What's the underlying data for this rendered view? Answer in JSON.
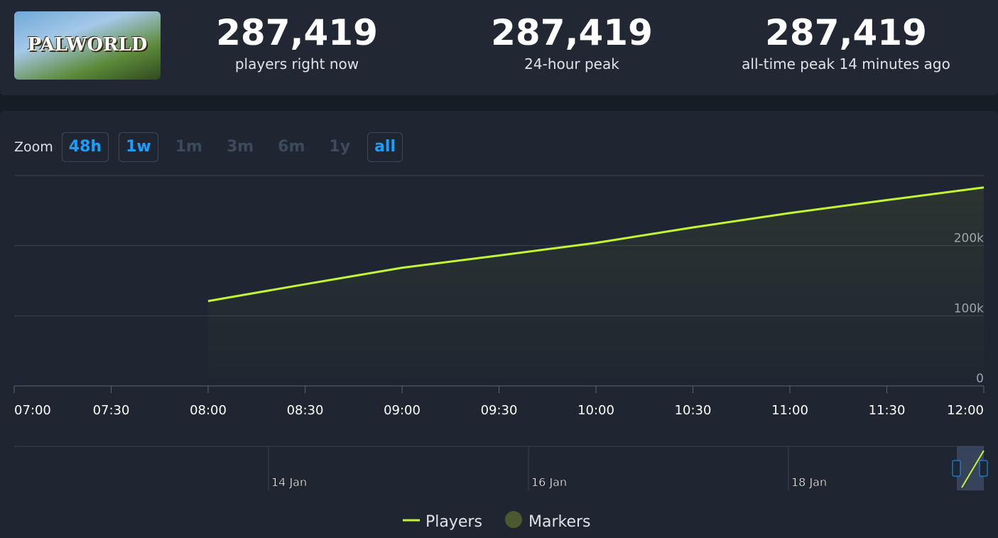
{
  "game": {
    "logo_text": "PALWORLD"
  },
  "stats": [
    {
      "value": "287,419",
      "label": "players right now"
    },
    {
      "value": "287,419",
      "label": "24-hour peak"
    },
    {
      "value": "287,419",
      "label": "all-time peak 14 minutes ago"
    }
  ],
  "zoom": {
    "label": "Zoom",
    "options": [
      {
        "label": "48h",
        "active": true
      },
      {
        "label": "1w",
        "active": true
      },
      {
        "label": "1m",
        "active": false
      },
      {
        "label": "3m",
        "active": false
      },
      {
        "label": "6m",
        "active": false
      },
      {
        "label": "1y",
        "active": false
      },
      {
        "label": "all",
        "active": true
      }
    ]
  },
  "chart_data": {
    "type": "line",
    "categories": [
      "07:00",
      "07:30",
      "08:00",
      "08:30",
      "09:00",
      "09:30",
      "10:00",
      "10:30",
      "11:00",
      "11:30",
      "12:00"
    ],
    "series": [
      {
        "name": "Players",
        "color": "#c4f534",
        "values": [
          null,
          null,
          121000,
          145000,
          168500,
          186000,
          204000,
          226000,
          246500,
          265000,
          283000
        ]
      }
    ],
    "markers": {
      "name": "Markers",
      "color": "#4a5a2e"
    },
    "ylim": [
      0,
      300000
    ],
    "yticks": [
      0,
      {
        "value": 100000,
        "label": "100k"
      },
      {
        "value": 200000,
        "label": "200k"
      }
    ],
    "grid": true,
    "navigator": {
      "labels": [
        "14 Jan",
        "16 Jan",
        "18 Jan"
      ]
    }
  }
}
